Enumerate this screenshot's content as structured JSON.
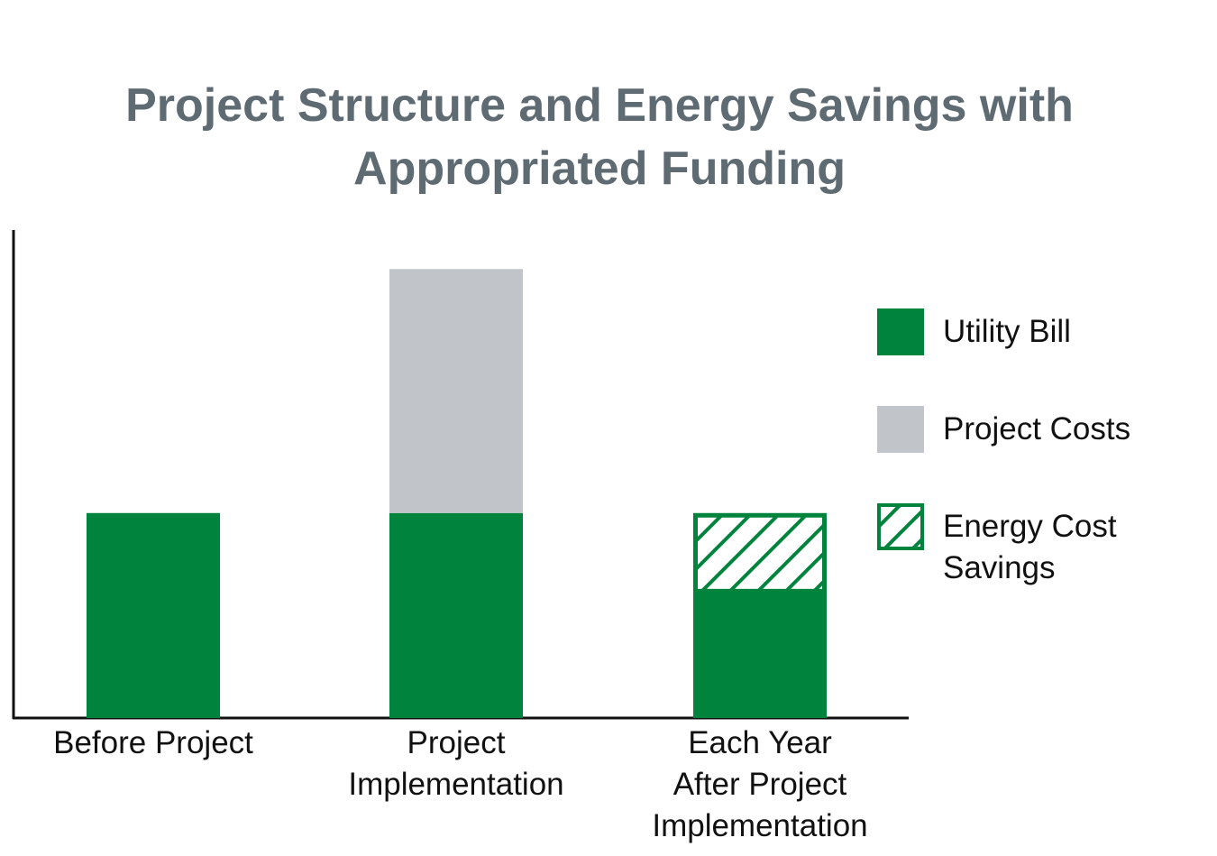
{
  "chart_data": {
    "type": "stacked_bar",
    "title": "Project Structure and Energy Savings with\nAppropriated Funding",
    "categories": [
      "Before Project",
      "Project\nImplementation",
      "Each Year\nAfter Project\nImplementation"
    ],
    "series": [
      {
        "name": "Utility Bill",
        "color": "#00843d",
        "values": [
          42,
          42,
          26
        ]
      },
      {
        "name": "Project Costs",
        "color": "#c1c4c8",
        "values": [
          null,
          50,
          null
        ]
      },
      {
        "name": "Energy Cost\nSavings",
        "color": "#00843d",
        "hatch": true,
        "values": [
          null,
          null,
          16
        ]
      }
    ],
    "ylim": [
      0,
      100
    ]
  }
}
